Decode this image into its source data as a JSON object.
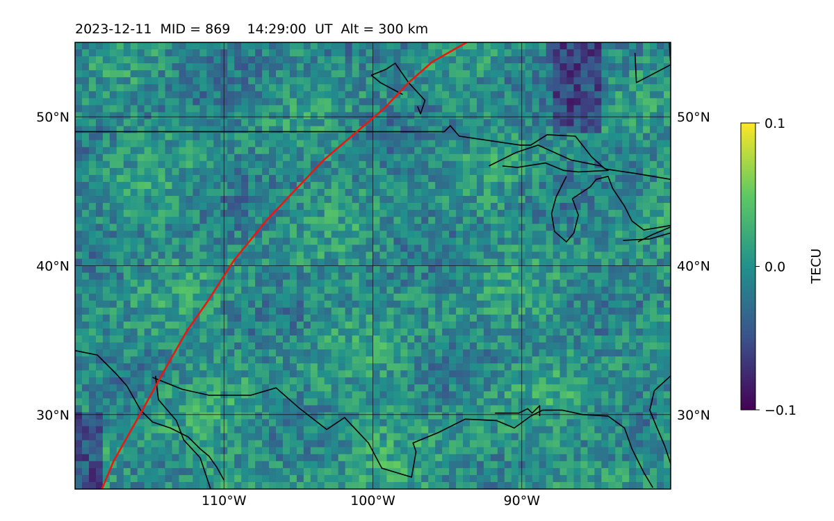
{
  "title": "2023-12-11  MID = 869    14:29:00  UT  Alt = 300 km",
  "map": {
    "lon_range": [
      -120,
      -80
    ],
    "lat_range": [
      25,
      55
    ],
    "lat_ticks": [
      {
        "value": 50,
        "label": "50°N"
      },
      {
        "value": 40,
        "label": "40°N"
      },
      {
        "value": 30,
        "label": "30°N"
      }
    ],
    "lon_ticks": [
      {
        "value": -110,
        "label": "110°W"
      },
      {
        "value": -100,
        "label": "100°W"
      },
      {
        "value": -90,
        "label": "90°W"
      }
    ],
    "gridlines": true,
    "track_color": "#e8190f",
    "track": [
      [
        -118.2,
        25
      ],
      [
        -117.4,
        26.9
      ],
      [
        -115.7,
        29.9
      ],
      [
        -114.1,
        32.8
      ],
      [
        -112.5,
        35.6
      ],
      [
        -111.1,
        37.6
      ],
      [
        -109.3,
        40.4
      ],
      [
        -107.1,
        43.1
      ],
      [
        -103.3,
        47.1
      ],
      [
        -99.2,
        50.6
      ],
      [
        -97.6,
        52.3
      ],
      [
        -96,
        53.7
      ],
      [
        -93.7,
        55
      ]
    ],
    "coastlines": [
      [
        [
          -98,
          51.5
        ],
        [
          -99.5,
          52.3
        ],
        [
          -100.1,
          52.8
        ],
        [
          -99.1,
          53.2
        ],
        [
          -98.5,
          53.6
        ],
        [
          -97.6,
          52.3
        ],
        [
          -96.5,
          51.1
        ],
        [
          -96.8,
          50.2
        ],
        [
          -97,
          50.7
        ]
      ],
      [
        [
          -120,
          49
        ],
        [
          -95.2,
          49
        ],
        [
          -94.8,
          49.4
        ],
        [
          -94.2,
          48.7
        ],
        [
          -90.1,
          48.1
        ],
        [
          -89.4,
          48.1
        ],
        [
          -88.3,
          48.8
        ],
        [
          -86.4,
          48.7
        ],
        [
          -85.3,
          47.3
        ],
        [
          -84.4,
          46.5
        ],
        [
          -82.4,
          46.2
        ],
        [
          -80,
          45.8
        ]
      ],
      [
        [
          -92.2,
          46.7
        ],
        [
          -90.4,
          47.6
        ],
        [
          -88.9,
          48.1
        ],
        [
          -86.7,
          47.1
        ],
        [
          -84.7,
          46.7
        ],
        [
          -84.2,
          46.4
        ],
        [
          -86.2,
          46.3
        ],
        [
          -87.2,
          46.4
        ],
        [
          -88.4,
          46.9
        ],
        [
          -90.3,
          46.6
        ],
        [
          -91.3,
          46.7
        ]
      ],
      [
        [
          -87,
          46
        ],
        [
          -87.7,
          44.6
        ],
        [
          -88,
          43.5
        ],
        [
          -87.8,
          42.3
        ],
        [
          -87,
          41.6
        ],
        [
          -86.5,
          42.2
        ],
        [
          -86.2,
          43.4
        ],
        [
          -86.6,
          44.5
        ],
        [
          -85.4,
          45.3
        ],
        [
          -85,
          45.8
        ],
        [
          -84.2,
          46
        ],
        [
          -83.9,
          45.2
        ],
        [
          -83.1,
          44
        ],
        [
          -82.6,
          43
        ]
      ],
      [
        [
          -82.6,
          43
        ],
        [
          -81.8,
          42.4
        ],
        [
          -80,
          42.7
        ]
      ],
      [
        [
          -83.2,
          41.7
        ],
        [
          -81.4,
          41.8
        ],
        [
          -80,
          42.2
        ]
      ],
      [
        [
          -82.2,
          41.6
        ],
        [
          -81.2,
          42.1
        ],
        [
          -80,
          42.6
        ]
      ],
      [
        [
          -120,
          34.3
        ],
        [
          -118.5,
          34
        ],
        [
          -117.2,
          32.7
        ],
        [
          -116.5,
          31.9
        ],
        [
          -115.6,
          30.3
        ],
        [
          -114.8,
          29.5
        ],
        [
          -113.6,
          29.1
        ],
        [
          -112.4,
          28.5
        ],
        [
          -111.6,
          27.7
        ],
        [
          -111,
          27.2
        ],
        [
          -110.5,
          26.5
        ],
        [
          -110,
          25.6
        ]
      ],
      [
        [
          -114.8,
          32.5
        ],
        [
          -112.8,
          31.7
        ],
        [
          -111,
          31.3
        ],
        [
          -108.2,
          31.3
        ],
        [
          -106.5,
          31.8
        ],
        [
          -104.9,
          30.4
        ],
        [
          -103.1,
          29
        ],
        [
          -101.9,
          29.8
        ],
        [
          -100.3,
          28.1
        ],
        [
          -99.4,
          26.4
        ],
        [
          -97.4,
          25.8
        ],
        [
          -97.1,
          27.5
        ],
        [
          -97.3,
          28.1
        ],
        [
          -95.6,
          28.8
        ],
        [
          -93.8,
          29.7
        ],
        [
          -91.7,
          29.6
        ],
        [
          -90.5,
          29.1
        ],
        [
          -89.4,
          29.9
        ],
        [
          -88.6,
          30.3
        ],
        [
          -87.3,
          30.3
        ],
        [
          -85.9,
          30
        ],
        [
          -84.2,
          29.9
        ],
        [
          -83.1,
          29.1
        ],
        [
          -82.6,
          27.7
        ],
        [
          -81.8,
          26.1
        ],
        [
          -81.2,
          25.1
        ]
      ],
      [
        [
          -91.8,
          30.1
        ],
        [
          -90.2,
          30.1
        ],
        [
          -89.6,
          30.4
        ],
        [
          -89.3,
          30.1
        ],
        [
          -88.8,
          30.6
        ],
        [
          -88.8,
          29.9
        ]
      ],
      [
        [
          -114.6,
          32.6
        ],
        [
          -114.4,
          31
        ],
        [
          -113.2,
          29.6
        ],
        [
          -112.7,
          28.3
        ],
        [
          -111.6,
          27.1
        ],
        [
          -110.9,
          25
        ]
      ],
      [
        [
          -80,
          32.6
        ],
        [
          -81.1,
          31.6
        ],
        [
          -81.4,
          30.3
        ],
        [
          -81,
          29.3
        ],
        [
          -80.4,
          27.9
        ],
        [
          -80,
          26.7
        ]
      ],
      [
        [
          -80.1,
          55
        ],
        [
          -80,
          53.5
        ],
        [
          -82.3,
          52.3
        ],
        [
          -82.4,
          54.3
        ]
      ]
    ]
  },
  "colorbar": {
    "label": "TECU",
    "min": -0.1,
    "max": 0.1,
    "ticks": [
      {
        "value": 0.1,
        "label": "0.1"
      },
      {
        "value": 0.0,
        "label": "0.0"
      },
      {
        "value": -0.1,
        "label": "−0.1"
      }
    ],
    "colors": [
      "#440154",
      "#3b528b",
      "#21918c",
      "#5ec962",
      "#fde725"
    ]
  }
}
